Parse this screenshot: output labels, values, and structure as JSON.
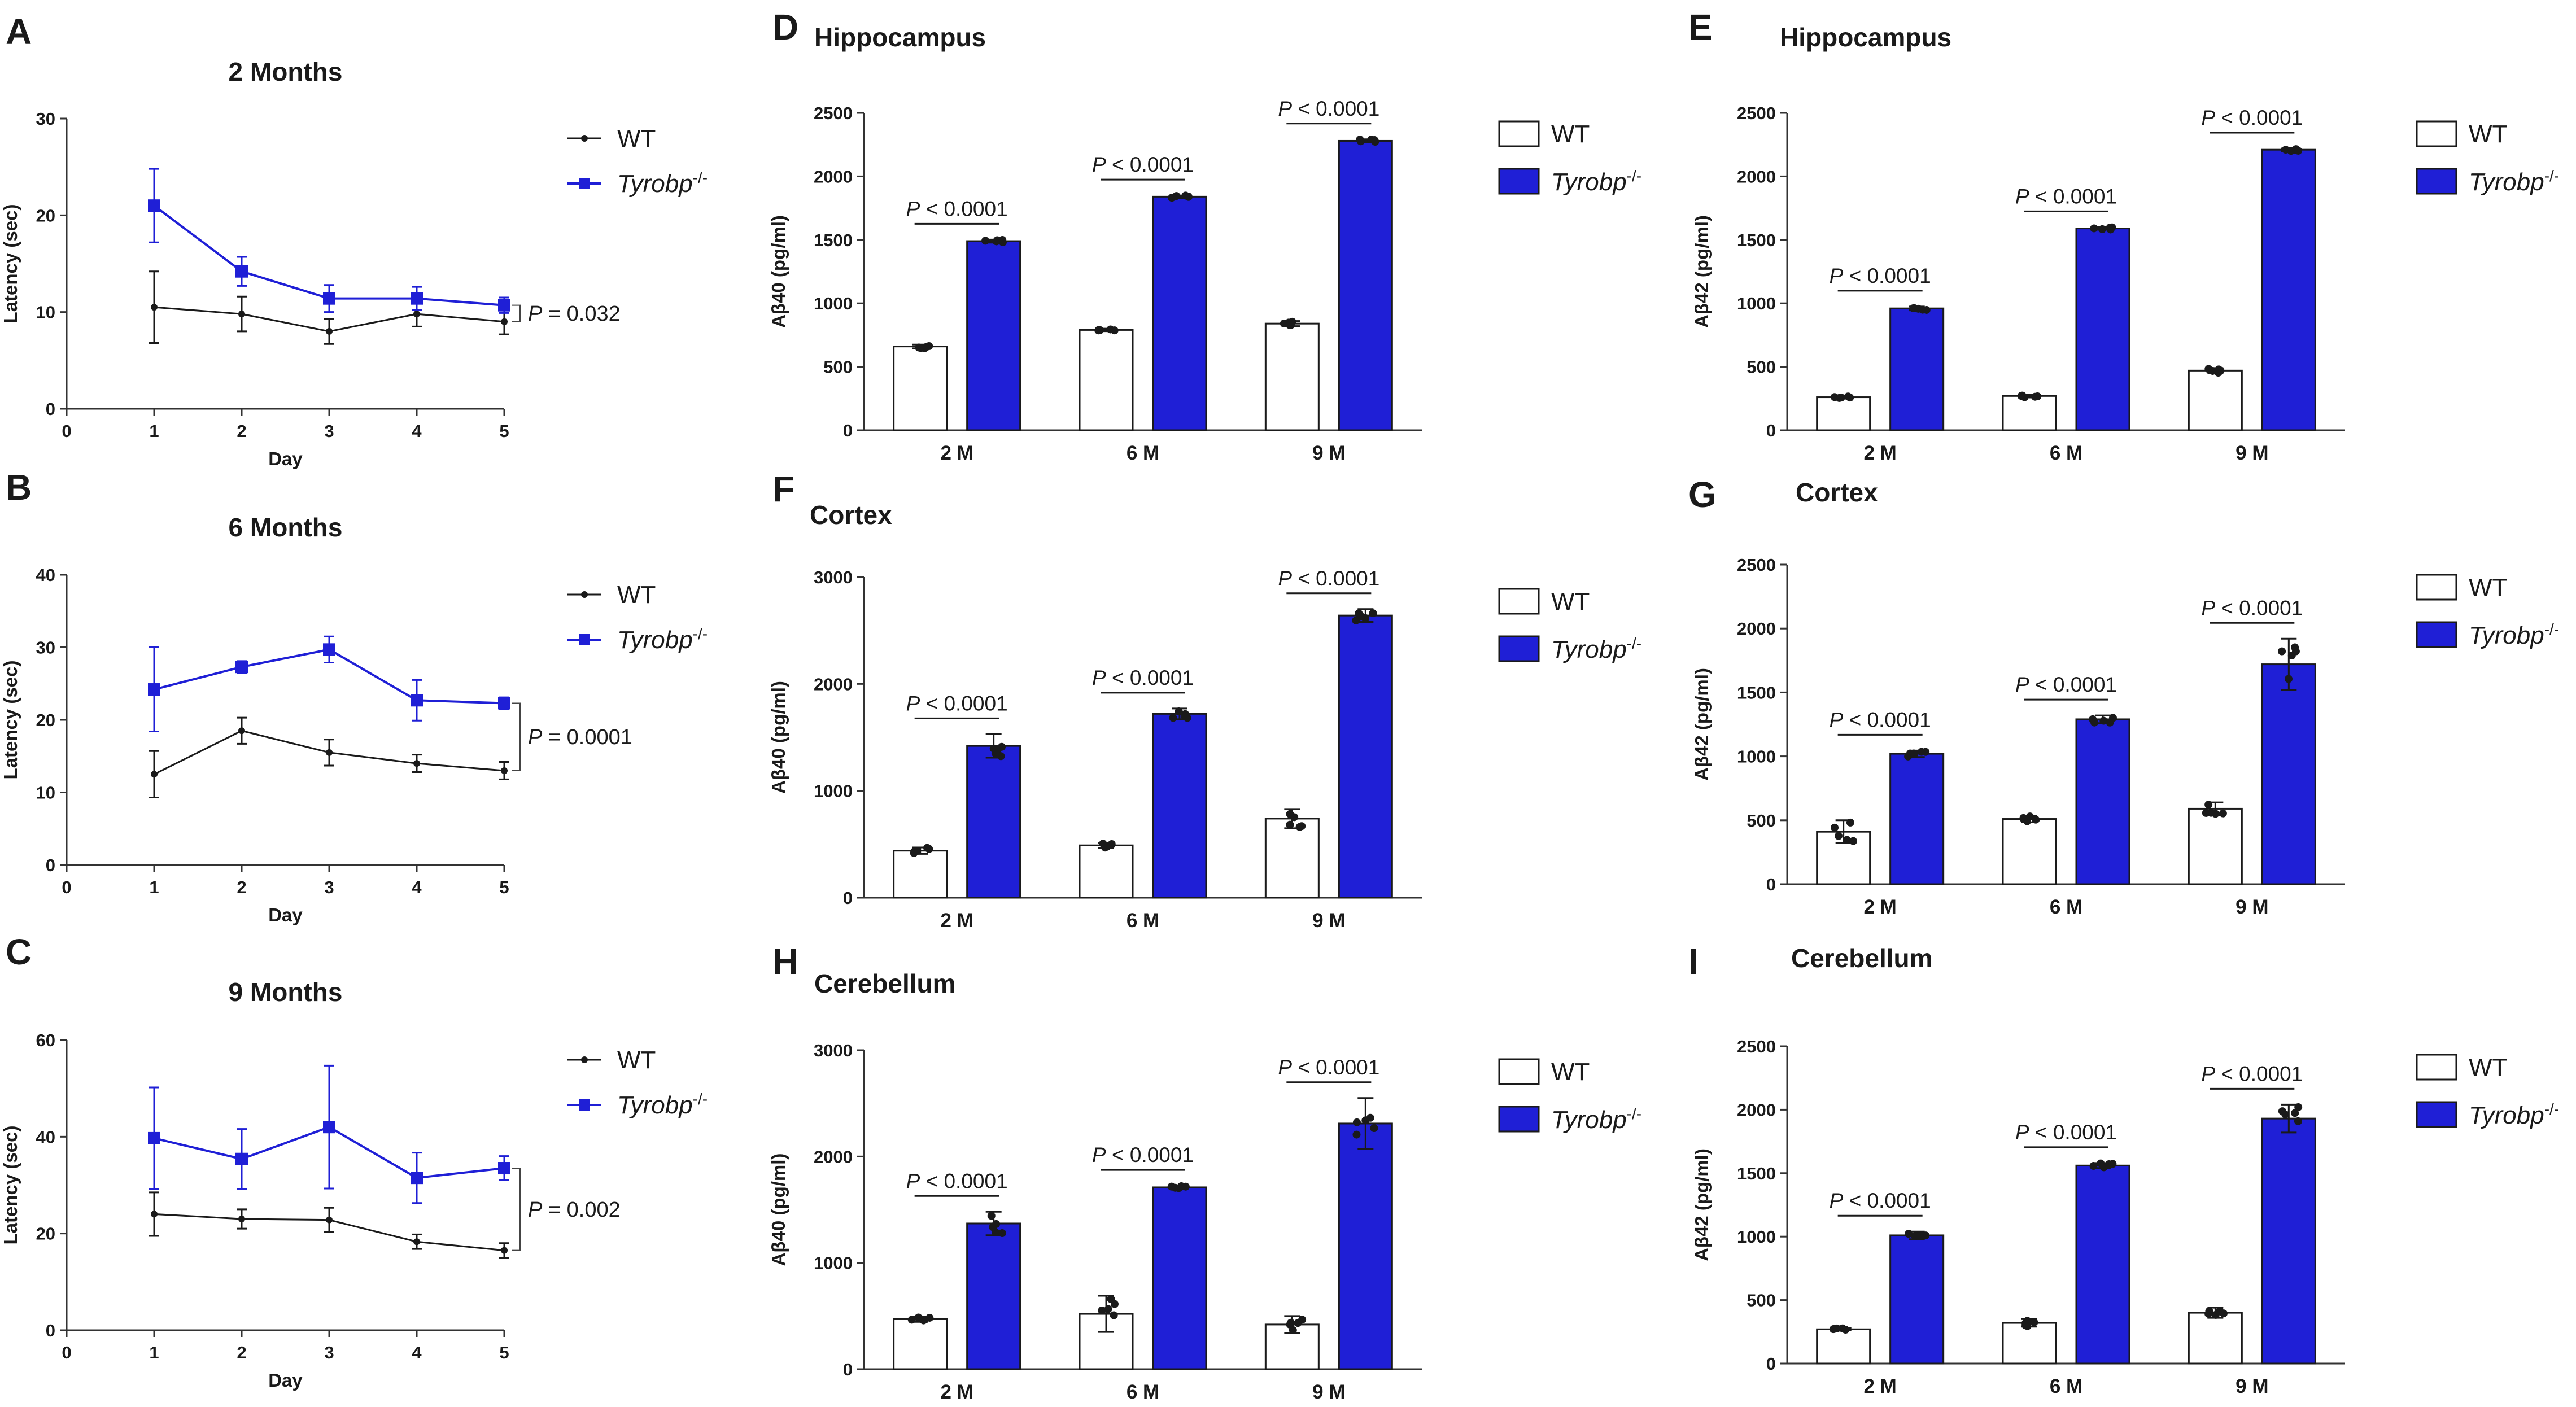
{
  "figure": {
    "legend": {
      "wt": "WT",
      "tyrobp": "Tyrobp",
      "tyrobp_sup": "-/-"
    },
    "colors": {
      "wt_line": "#1a1a1a",
      "tyrobp": "#1f1fd6",
      "wt_bar_fill": "#ffffff",
      "tyrobp_bar_fill": "#1f1fd6"
    }
  },
  "chart_data": [
    {
      "panel": "A",
      "type": "line",
      "title": "2 Months",
      "xlabel": "Day",
      "ylabel": "Latency (sec)",
      "xlim": [
        0,
        5
      ],
      "ylim": [
        0,
        30
      ],
      "xticks": [
        0,
        1,
        2,
        3,
        4,
        5
      ],
      "yticks": [
        0,
        10,
        20,
        30
      ],
      "x": [
        1,
        2,
        3,
        4,
        5
      ],
      "series": [
        {
          "name": "WT",
          "values": [
            10.5,
            9.8,
            8.0,
            9.8,
            9.0
          ],
          "err": [
            3.7,
            1.8,
            1.3,
            1.3,
            1.3
          ]
        },
        {
          "name": "Tyrobp-/-",
          "values": [
            21.0,
            14.2,
            11.4,
            11.4,
            10.7
          ],
          "err": [
            3.8,
            1.5,
            1.4,
            1.2,
            0.8
          ]
        }
      ],
      "annotation": {
        "label": "P",
        "value": " = 0.032"
      }
    },
    {
      "panel": "B",
      "type": "line",
      "title": "6 Months",
      "xlabel": "Day",
      "ylabel": "Latency (sec)",
      "xlim": [
        0,
        5
      ],
      "ylim": [
        0,
        40
      ],
      "xticks": [
        0,
        1,
        2,
        3,
        4,
        5
      ],
      "yticks": [
        0,
        10,
        20,
        30,
        40
      ],
      "x": [
        1,
        2,
        3,
        4,
        5
      ],
      "series": [
        {
          "name": "WT",
          "values": [
            12.5,
            18.5,
            15.5,
            14.0,
            13.0
          ],
          "err": [
            3.2,
            1.8,
            1.8,
            1.2,
            1.2
          ]
        },
        {
          "name": "Tyrobp-/-",
          "values": [
            24.2,
            27.3,
            29.7,
            22.7,
            22.3
          ],
          "err": [
            5.8,
            0.8,
            1.8,
            2.8,
            0.8
          ]
        }
      ],
      "annotation": {
        "label": "P",
        "value": " = 0.0001"
      }
    },
    {
      "panel": "C",
      "type": "line",
      "title": "9 Months",
      "xlabel": "Day",
      "ylabel": "Latency (sec)",
      "xlim": [
        0,
        5
      ],
      "ylim": [
        0,
        60
      ],
      "xticks": [
        0,
        1,
        2,
        3,
        4,
        5
      ],
      "yticks": [
        0,
        20,
        40,
        60
      ],
      "x": [
        1,
        2,
        3,
        4,
        5
      ],
      "series": [
        {
          "name": "WT",
          "values": [
            24.0,
            23.0,
            22.8,
            18.3,
            16.5
          ],
          "err": [
            4.5,
            2.0,
            2.5,
            1.5,
            1.5
          ]
        },
        {
          "name": "Tyrobp-/-",
          "values": [
            39.7,
            35.4,
            42.0,
            31.5,
            33.5
          ],
          "err": [
            10.5,
            6.2,
            12.7,
            5.2,
            2.5
          ]
        }
      ],
      "annotation": {
        "label": "P",
        "value": " = 0.002"
      }
    },
    {
      "panel": "D",
      "type": "bar",
      "title": "Hippocampus",
      "ylabel": "Aβ40 (pg/ml)",
      "ylim": [
        0,
        2500
      ],
      "yticks": [
        0,
        500,
        1000,
        1500,
        2000,
        2500
      ],
      "categories": [
        "2 M",
        "6 M",
        "9 M"
      ],
      "series": [
        {
          "name": "WT",
          "values": [
            660,
            790,
            840
          ],
          "err": [
            15,
            10,
            20
          ]
        },
        {
          "name": "Tyrobp-/-",
          "values": [
            1490,
            1840,
            2280
          ],
          "err": [
            12,
            10,
            12
          ]
        }
      ],
      "sig": [
        "P < 0.0001",
        "P < 0.0001",
        "P < 0.0001"
      ]
    },
    {
      "panel": "E",
      "type": "bar",
      "title": "Hippocampus",
      "ylabel": "Aβ42 (pg/ml)",
      "ylim": [
        0,
        2500
      ],
      "yticks": [
        0,
        500,
        1000,
        1500,
        2000,
        2500
      ],
      "categories": [
        "2 M",
        "6 M",
        "9 M"
      ],
      "series": [
        {
          "name": "WT",
          "values": [
            260,
            270,
            470
          ],
          "err": [
            10,
            12,
            20
          ]
        },
        {
          "name": "Tyrobp-/-",
          "values": [
            960,
            1590,
            2210
          ],
          "err": [
            15,
            10,
            10
          ]
        }
      ],
      "sig": [
        "P < 0.0001",
        "P < 0.0001",
        "P < 0.0001"
      ]
    },
    {
      "panel": "F",
      "type": "bar",
      "title": "Cortex",
      "ylabel": "Aβ40 (pg/ml)",
      "ylim": [
        0,
        3000
      ],
      "yticks": [
        0,
        1000,
        2000,
        3000
      ],
      "categories": [
        "2 M",
        "6 M",
        "9 M"
      ],
      "series": [
        {
          "name": "WT",
          "values": [
            440,
            490,
            740
          ],
          "err": [
            30,
            25,
            90
          ]
        },
        {
          "name": "Tyrobp-/-",
          "values": [
            1420,
            1720,
            2640
          ],
          "err": [
            110,
            50,
            60
          ]
        }
      ],
      "sig": [
        "P < 0.0001",
        "P < 0.0001",
        "P < 0.0001"
      ]
    },
    {
      "panel": "G",
      "type": "bar",
      "title": "Cortex",
      "ylabel": "Aβ42 (pg/ml)",
      "ylim": [
        0,
        2500
      ],
      "yticks": [
        0,
        500,
        1000,
        1500,
        2000,
        2500
      ],
      "categories": [
        "2 M",
        "6 M",
        "9 M"
      ],
      "series": [
        {
          "name": "WT",
          "values": [
            410,
            510,
            590
          ],
          "err": [
            90,
            25,
            50
          ]
        },
        {
          "name": "Tyrobp-/-",
          "values": [
            1020,
            1290,
            1720
          ],
          "err": [
            25,
            30,
            200
          ]
        }
      ],
      "sig": [
        "P < 0.0001",
        "P < 0.0001",
        "P < 0.0001"
      ]
    },
    {
      "panel": "H",
      "type": "bar",
      "title": "Cerebellum",
      "ylabel": "Aβ40 (pg/ml)",
      "ylim": [
        0,
        3000
      ],
      "yticks": [
        0,
        1000,
        2000,
        3000
      ],
      "categories": [
        "2 M",
        "6 M",
        "9 M"
      ],
      "series": [
        {
          "name": "WT",
          "values": [
            470,
            520,
            420
          ],
          "err": [
            25,
            170,
            80
          ]
        },
        {
          "name": "Tyrobp-/-",
          "values": [
            1370,
            1710,
            2310
          ],
          "err": [
            110,
            15,
            240
          ]
        }
      ],
      "sig": [
        "P < 0.0001",
        "P < 0.0001",
        "P < 0.0001"
      ]
    },
    {
      "panel": "I",
      "type": "bar",
      "title": "Cerebellum",
      "ylabel": "Aβ42 (pg/ml)",
      "ylim": [
        0,
        2500
      ],
      "yticks": [
        0,
        500,
        1000,
        1500,
        2000,
        2500
      ],
      "categories": [
        "2 M",
        "6 M",
        "9 M"
      ],
      "series": [
        {
          "name": "WT",
          "values": [
            270,
            320,
            400
          ],
          "err": [
            10,
            30,
            40
          ]
        },
        {
          "name": "Tyrobp-/-",
          "values": [
            1010,
            1560,
            1930
          ],
          "err": [
            30,
            20,
            110
          ]
        }
      ],
      "sig": [
        "P < 0.0001",
        "P < 0.0001",
        "P < 0.0001"
      ]
    }
  ]
}
